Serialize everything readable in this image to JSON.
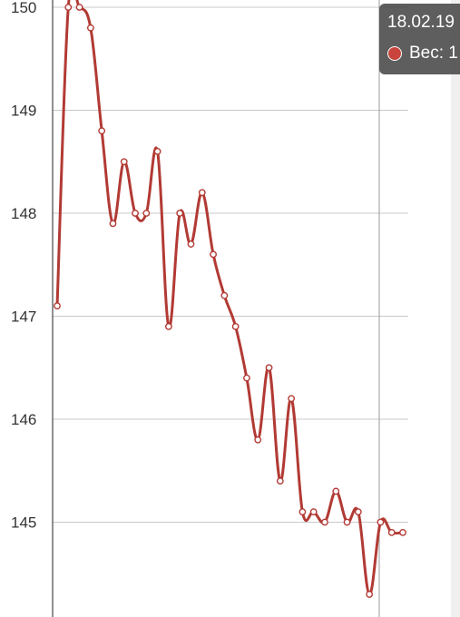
{
  "chart_data": {
    "type": "line",
    "title": "",
    "xlabel": "",
    "ylabel": "",
    "ylim": [
      143.9,
      150.05
    ],
    "yticks": [
      150,
      149,
      148,
      147,
      146,
      145
    ],
    "ytick_labels": [
      "150",
      "149",
      "148",
      "147",
      "146",
      "145"
    ],
    "grid": true,
    "series": [
      {
        "color": "#b23a34",
        "values": [
          147.1,
          150.0,
          150.0,
          149.8,
          148.8,
          147.9,
          148.5,
          148.0,
          148.0,
          148.6,
          146.9,
          148.0,
          147.7,
          148.2,
          147.6,
          147.2,
          146.9,
          146.4,
          145.8,
          146.5,
          145.4,
          146.2,
          145.1,
          145.1,
          145.0,
          145.3,
          145.0,
          145.1,
          144.3,
          145.0,
          144.9,
          144.9
        ]
      }
    ],
    "highlighted_index": 29
  },
  "tooltip": {
    "date": "18.02.19",
    "series_label": "Вес: 1",
    "dot_color": "#c8443c"
  }
}
